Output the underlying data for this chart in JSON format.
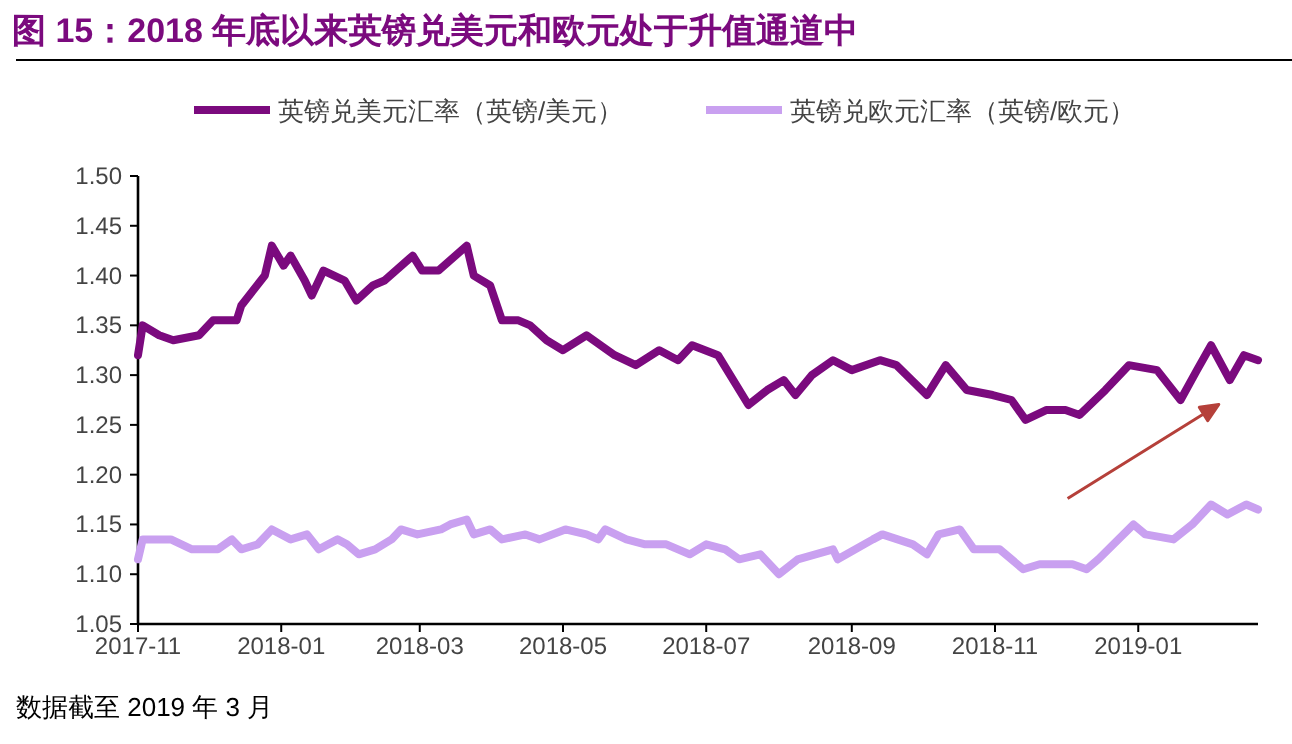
{
  "chart_data": {
    "type": "line",
    "title": "图 15：2018 年底以来英镑兑美元和欧元处于升值通道中",
    "annotations": [
      "数据截至 2019 年 3 月"
    ],
    "legend": "top",
    "grid": false,
    "line_style": "solid",
    "xlim": [
      "2017-11-01",
      "2019-02-21"
    ],
    "xticks": [
      "2017-11",
      "2018-01",
      "2018-03",
      "2018-05",
      "2018-07",
      "2018-09",
      "2018-11",
      "2019-01"
    ],
    "ylim": [
      1.05,
      1.5
    ],
    "yticks": [
      {
        "value": 1.05,
        "label": "1.05"
      },
      {
        "value": 1.1,
        "label": "1.10"
      },
      {
        "value": 1.15,
        "label": "1.15"
      },
      {
        "value": 1.2,
        "label": "1.20"
      },
      {
        "value": 1.25,
        "label": "1.25"
      },
      {
        "value": 1.3,
        "label": "1.30"
      },
      {
        "value": 1.35,
        "label": "1.35"
      },
      {
        "value": 1.4,
        "label": "1.40"
      },
      {
        "value": 1.45,
        "label": "1.45"
      },
      {
        "value": 1.5,
        "label": "1.50"
      }
    ],
    "series": [
      {
        "name": "英镑兑美元汇率（英镑/美元）",
        "color": "#7b0a7e",
        "x": [
          "2017-11-01",
          "2017-11-03",
          "2017-11-10",
          "2017-11-16",
          "2017-11-27",
          "2017-12-03",
          "2017-12-13",
          "2017-12-15",
          "2017-12-25",
          "2017-12-28",
          "2018-01-02",
          "2018-01-05",
          "2018-01-11",
          "2018-01-14",
          "2018-01-19",
          "2018-01-28",
          "2018-02-02",
          "2018-02-09",
          "2018-02-14",
          "2018-02-26",
          "2018-03-02",
          "2018-03-09",
          "2018-03-21",
          "2018-03-24",
          "2018-03-31",
          "2018-04-05",
          "2018-04-12",
          "2018-04-17",
          "2018-04-24",
          "2018-05-01",
          "2018-05-11",
          "2018-05-23",
          "2018-06-01",
          "2018-06-11",
          "2018-06-19",
          "2018-06-25",
          "2018-07-06",
          "2018-07-19",
          "2018-07-27",
          "2018-08-03",
          "2018-08-08",
          "2018-08-15",
          "2018-08-24",
          "2018-09-01",
          "2018-09-13",
          "2018-09-20",
          "2018-10-03",
          "2018-10-11",
          "2018-10-20",
          "2018-10-31",
          "2018-11-08",
          "2018-11-14",
          "2018-11-23",
          "2018-12-01",
          "2018-12-07",
          "2018-12-18",
          "2018-12-28",
          "2019-01-09",
          "2019-01-19",
          "2019-01-26",
          "2019-02-01",
          "2019-02-09",
          "2019-02-15",
          "2019-02-21"
        ],
        "values": [
          1.32,
          1.35,
          1.34,
          1.335,
          1.34,
          1.355,
          1.355,
          1.37,
          1.4,
          1.43,
          1.41,
          1.42,
          1.395,
          1.38,
          1.405,
          1.395,
          1.375,
          1.39,
          1.395,
          1.42,
          1.405,
          1.405,
          1.43,
          1.4,
          1.39,
          1.355,
          1.355,
          1.35,
          1.335,
          1.325,
          1.34,
          1.32,
          1.31,
          1.325,
          1.315,
          1.33,
          1.32,
          1.27,
          1.285,
          1.295,
          1.28,
          1.3,
          1.315,
          1.305,
          1.315,
          1.31,
          1.28,
          1.31,
          1.285,
          1.28,
          1.275,
          1.255,
          1.265,
          1.265,
          1.26,
          1.285,
          1.31,
          1.305,
          1.275,
          1.305,
          1.33,
          1.295,
          1.32,
          1.315
        ]
      },
      {
        "name": "英镑兑欧元汇率（英镑/欧元）",
        "color": "#c9a0f0",
        "x": [
          "2017-11-01",
          "2017-11-03",
          "2017-11-15",
          "2017-11-24",
          "2017-12-05",
          "2017-12-11",
          "2017-12-15",
          "2017-12-22",
          "2017-12-28",
          "2018-01-05",
          "2018-01-12",
          "2018-01-17",
          "2018-01-25",
          "2018-01-29",
          "2018-02-03",
          "2018-02-10",
          "2018-02-17",
          "2018-02-21",
          "2018-02-28",
          "2018-03-10",
          "2018-03-14",
          "2018-03-21",
          "2018-03-24",
          "2018-03-31",
          "2018-04-05",
          "2018-04-15",
          "2018-04-21",
          "2018-05-02",
          "2018-05-11",
          "2018-05-16",
          "2018-05-19",
          "2018-05-28",
          "2018-06-05",
          "2018-06-14",
          "2018-06-24",
          "2018-07-01",
          "2018-07-09",
          "2018-07-15",
          "2018-07-24",
          "2018-08-01",
          "2018-08-09",
          "2018-08-24",
          "2018-08-26",
          "2018-09-10",
          "2018-09-14",
          "2018-09-27",
          "2018-10-03",
          "2018-10-08",
          "2018-10-17",
          "2018-10-23",
          "2018-11-03",
          "2018-11-13",
          "2018-11-20",
          "2018-12-04",
          "2018-12-10",
          "2018-12-15",
          "2018-12-30",
          "2019-01-04",
          "2019-01-16",
          "2019-01-24",
          "2019-02-01",
          "2019-02-08",
          "2019-02-16",
          "2019-02-21"
        ],
        "values": [
          1.115,
          1.135,
          1.135,
          1.125,
          1.125,
          1.135,
          1.125,
          1.13,
          1.145,
          1.135,
          1.14,
          1.125,
          1.135,
          1.13,
          1.12,
          1.125,
          1.135,
          1.145,
          1.14,
          1.145,
          1.15,
          1.155,
          1.14,
          1.145,
          1.135,
          1.14,
          1.135,
          1.145,
          1.14,
          1.135,
          1.145,
          1.135,
          1.13,
          1.13,
          1.12,
          1.13,
          1.125,
          1.115,
          1.12,
          1.1,
          1.115,
          1.125,
          1.115,
          1.135,
          1.14,
          1.13,
          1.12,
          1.14,
          1.145,
          1.125,
          1.125,
          1.105,
          1.11,
          1.11,
          1.105,
          1.115,
          1.15,
          1.14,
          1.135,
          1.15,
          1.17,
          1.16,
          1.17,
          1.165
        ]
      }
    ]
  }
}
